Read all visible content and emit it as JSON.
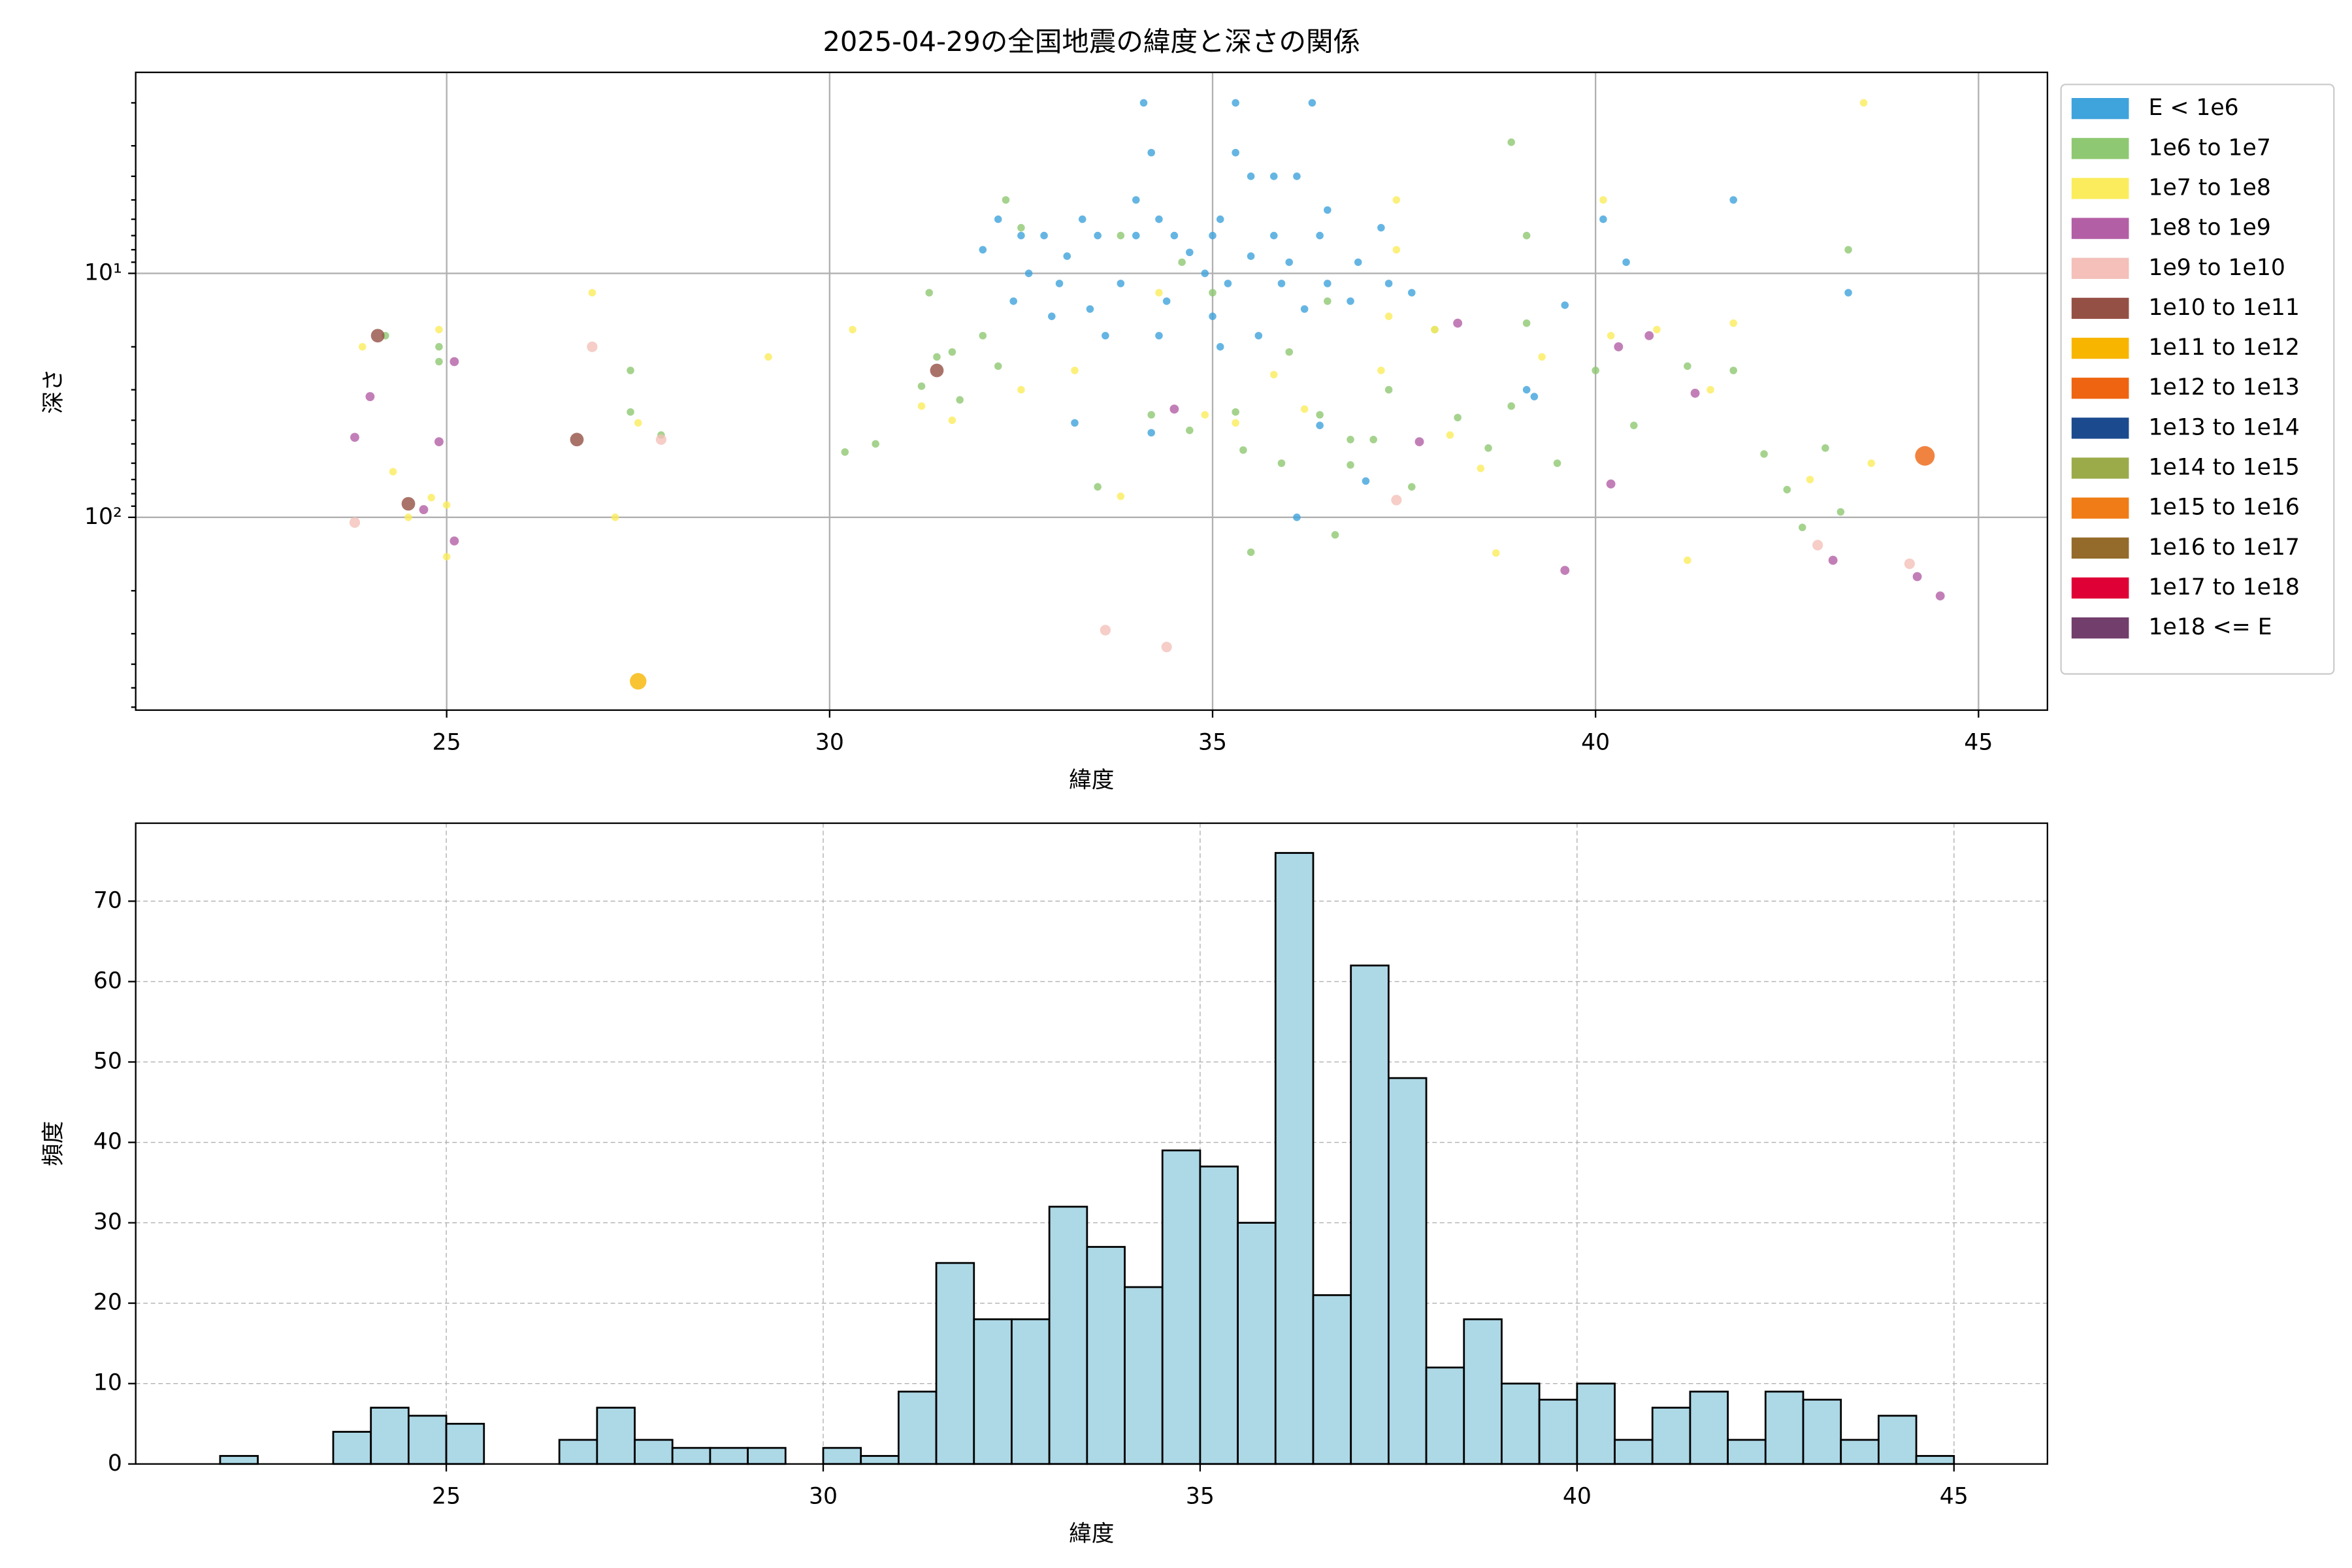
{
  "chart_data": [
    {
      "type": "scatter",
      "title": "2025-04-29の全国地震の緯度と深さの関係",
      "xlabel": "緯度",
      "ylabel": "深さ",
      "xlim": [
        20.94,
        45.9
      ],
      "xticks": [
        25,
        30,
        35,
        40,
        45
      ],
      "ylim": [
        617,
        1.5
      ],
      "yscale": "log",
      "yticks": [
        {
          "value": 10,
          "label": "10¹"
        },
        {
          "value": 100,
          "label": "10²"
        }
      ],
      "yminorticks": [
        2,
        3,
        4,
        5,
        6,
        7,
        8,
        9,
        20,
        30,
        40,
        50,
        60,
        70,
        80,
        90,
        200,
        300,
        400,
        500,
        600
      ],
      "grid": true,
      "legend": "outside right",
      "series": [
        {
          "name": "E < 1e6",
          "color": "#3fa3dc",
          "marker_size": 2.5,
          "x": [
            34.1,
            35.3,
            36.3,
            34.2,
            35.3,
            34.0,
            35.5,
            35.8,
            36.1,
            33.3,
            34.3,
            35.1,
            36.5,
            32.2,
            32.5,
            32.8,
            33.5,
            34.0,
            34.5,
            35.0,
            35.8,
            36.4,
            37.2,
            32.0,
            33.1,
            34.7,
            35.5,
            36.0,
            36.9,
            37.3,
            32.6,
            33.0,
            33.8,
            34.9,
            35.2,
            35.9,
            36.5,
            32.4,
            33.4,
            34.4,
            35.0,
            36.2,
            32.9,
            33.6,
            35.6,
            36.8,
            34.3,
            35.1,
            37.6,
            39.6,
            40.1,
            41.8,
            43.3,
            39.1,
            33.2,
            34.2,
            36.4,
            37.0,
            36.1,
            39.2,
            40.4
          ],
          "values": [
            2,
            2,
            2,
            3.2,
            3.2,
            5,
            4,
            4,
            4,
            6,
            6,
            6,
            5.5,
            6,
            7,
            7,
            7,
            7,
            7,
            7,
            7,
            7,
            6.5,
            8,
            8.5,
            8.2,
            8.5,
            9,
            9,
            11,
            10,
            11,
            11,
            10,
            11,
            11,
            11,
            13,
            14,
            13,
            15,
            14,
            15,
            18,
            18,
            13,
            18,
            20,
            12,
            13.5,
            6,
            5,
            12,
            30,
            41,
            45,
            42,
            71,
            100,
            32,
            9
          ]
        },
        {
          "name": "1e6 to 1e7",
          "color": "#8fc872",
          "marker_size": 2.5,
          "x": [
            24.9,
            24.9,
            24.2,
            27.4,
            27.4,
            27.8,
            30.2,
            30.6,
            31.2,
            31.4,
            31.6,
            31.7,
            32.2,
            32.3,
            32.5,
            31.3,
            32.0,
            33.8,
            34.6,
            35.0,
            35.3,
            35.5,
            36.0,
            36.4,
            36.5,
            36.8,
            37.3,
            37.6,
            37.9,
            38.2,
            38.6,
            38.9,
            39.1,
            39.5,
            40.0,
            40.5,
            41.2,
            41.8,
            42.2,
            42.5,
            42.7,
            43.0,
            43.2,
            43.3,
            33.5,
            34.2,
            34.7,
            35.4,
            36.8,
            37.1,
            38.9,
            39.1,
            36.6,
            35.9
          ],
          "values": [
            20,
            23,
            18,
            25,
            37,
            46,
            54,
            50,
            29,
            22,
            21,
            33,
            24,
            5,
            6.5,
            12,
            18,
            7,
            9,
            12,
            37,
            139,
            21,
            38,
            13,
            48,
            30,
            75,
            17,
            39,
            52,
            35,
            16,
            60,
            25,
            42,
            24,
            25,
            55,
            77,
            110,
            52,
            95,
            8,
            75,
            38,
            44,
            53,
            61,
            48,
            2.9,
            7,
            118,
            60
          ]
        },
        {
          "name": "1e7 to 1e8",
          "color": "#fbec5d",
          "marker_size": 2.5,
          "x": [
            23.9,
            24.3,
            24.9,
            24.5,
            25.0,
            25.0,
            24.8,
            26.9,
            27.2,
            27.5,
            29.2,
            30.3,
            31.2,
            31.6,
            32.5,
            33.2,
            33.8,
            34.3,
            34.9,
            35.3,
            35.8,
            36.2,
            37.2,
            37.4,
            37.9,
            38.5,
            38.7,
            39.3,
            40.2,
            40.8,
            41.2,
            41.5,
            41.8,
            42.8,
            43.6,
            43.5,
            40.1,
            37.4,
            37.3,
            38.1
          ],
          "values": [
            20,
            65,
            17,
            100,
            89,
            145,
            83,
            12,
            100,
            41,
            22,
            17,
            35,
            40,
            30,
            25,
            82,
            12,
            38,
            41,
            26,
            36,
            25,
            8,
            17,
            63,
            140,
            22,
            18,
            17,
            150,
            30,
            16,
            70,
            60,
            2,
            5,
            5,
            15,
            46
          ]
        },
        {
          "name": "1e8 to 1e9",
          "color": "#b35fa5",
          "marker_size": 3,
          "x": [
            23.8,
            24.0,
            24.9,
            25.1,
            25.1,
            24.7,
            34.5,
            37.7,
            38.2,
            40.2,
            40.3,
            40.7,
            41.3,
            39.6,
            43.1,
            44.2,
            44.5
          ],
          "values": [
            47,
            32,
            49,
            23,
            125,
            93,
            36,
            49,
            16,
            73,
            20,
            18,
            31,
            165,
            150,
            175,
            210
          ]
        },
        {
          "name": "1e9 to 1e10",
          "color": "#f4c0b9",
          "marker_size": 3.5,
          "x": [
            23.8,
            26.9,
            27.8,
            33.6,
            34.4,
            37.4,
            42.9,
            44.1
          ],
          "values": [
            105,
            20,
            48,
            290,
            340,
            85,
            130,
            155
          ]
        },
        {
          "name": "1e10 to 1e11",
          "color": "#955045",
          "marker_size": 4.5,
          "x": [
            24.1,
            24.5,
            26.7,
            31.4
          ],
          "values": [
            18,
            88,
            48,
            25
          ]
        },
        {
          "name": "1e11 to 1e12",
          "color": "#f8b500",
          "marker_size": 5.5,
          "x": [
            27.5
          ],
          "values": [
            470
          ]
        },
        {
          "name": "1e12 to 1e13",
          "color": "#ee6411",
          "marker_size": 6.5,
          "x": [
            44.3
          ],
          "values": [
            56
          ]
        },
        {
          "name": "1e13 to 1e14",
          "color": "#1c4a8e",
          "marker_size": 7,
          "x": [],
          "values": []
        },
        {
          "name": "1e14 to 1e15",
          "color": "#9bab4a",
          "marker_size": 7,
          "x": [],
          "values": []
        },
        {
          "name": "1e15 to 1e16",
          "color": "#ef7c17",
          "marker_size": 7,
          "x": [],
          "values": []
        },
        {
          "name": "1e16 to 1e17",
          "color": "#946b2a",
          "marker_size": 7,
          "x": [],
          "values": []
        },
        {
          "name": "1e17 to 1e18",
          "color": "#df0035",
          "marker_size": 7,
          "x": [],
          "values": []
        },
        {
          "name": "1e18 <= E",
          "color": "#723e6b",
          "marker_size": 7,
          "x": [],
          "values": []
        }
      ]
    },
    {
      "type": "histogram",
      "xlabel": "緯度",
      "ylabel": "頻度",
      "xlim": [
        20.88,
        46.24
      ],
      "xticks": [
        25,
        30,
        35,
        40,
        45
      ],
      "ylim": [
        0,
        79.7
      ],
      "yticks": [
        0,
        10,
        20,
        30,
        40,
        50,
        60,
        70
      ],
      "grid": true,
      "grid_style": "dashed",
      "color": "#add8e6",
      "edgecolor": "#000000",
      "bins": [
        22,
        22.5,
        23,
        23.5,
        24,
        24.5,
        25,
        25.5,
        26,
        26.5,
        27,
        27.5,
        28,
        28.5,
        29,
        29.5,
        30,
        30.5,
        31,
        31.5,
        32,
        32.5,
        33,
        33.5,
        34,
        34.5,
        35,
        35.5,
        36,
        36.5,
        37,
        37.5,
        38,
        38.5,
        39,
        39.5,
        40,
        40.5,
        41,
        41.5,
        42,
        42.5,
        43,
        43.5,
        44,
        44.5,
        45
      ],
      "counts": [
        1,
        0,
        0,
        4,
        7,
        6,
        5,
        0,
        0,
        3,
        7,
        3,
        2,
        2,
        2,
        0,
        2,
        1,
        9,
        25,
        18,
        18,
        32,
        27,
        22,
        39,
        37,
        30,
        76,
        21,
        62,
        48,
        12,
        18,
        10,
        8,
        10,
        3,
        7,
        9,
        3,
        9,
        8,
        3,
        6,
        1
      ]
    }
  ]
}
